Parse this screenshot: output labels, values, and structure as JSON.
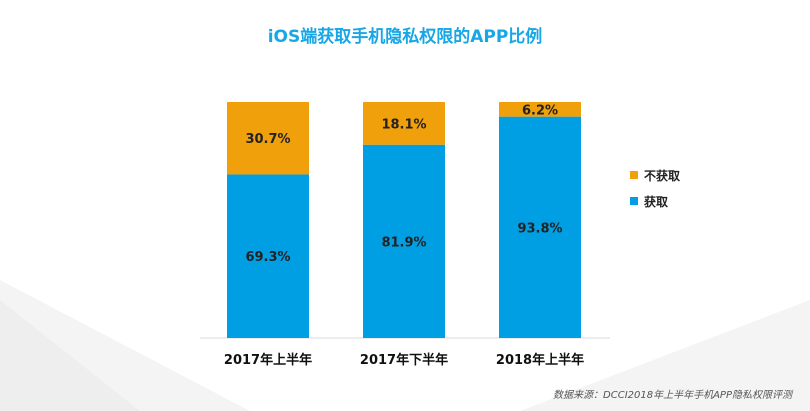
{
  "title": "iOS端获取手机隐私权限的APP比例",
  "source": "数据来源：DCCI2018年上半年手机APP隐私权限评测",
  "colors": {
    "get": "#009fe3",
    "not_get": "#f0a00a",
    "title": "#17a7e6"
  },
  "chart_data": {
    "type": "bar",
    "stacked": true,
    "title": "iOS端获取手机隐私权限的APP比例",
    "categories": [
      "2017年上半年",
      "2017年下半年",
      "2018年上半年"
    ],
    "series": [
      {
        "name": "获取",
        "values": [
          69.3,
          81.9,
          93.8
        ],
        "labels": [
          "69.3%",
          "81.9%",
          "93.8%"
        ]
      },
      {
        "name": "不获取",
        "values": [
          30.7,
          18.1,
          6.2
        ],
        "labels": [
          "30.7%",
          "18.1%",
          "6.2%"
        ]
      }
    ],
    "ylim": [
      0,
      100
    ],
    "legend": "right",
    "grid": false
  }
}
